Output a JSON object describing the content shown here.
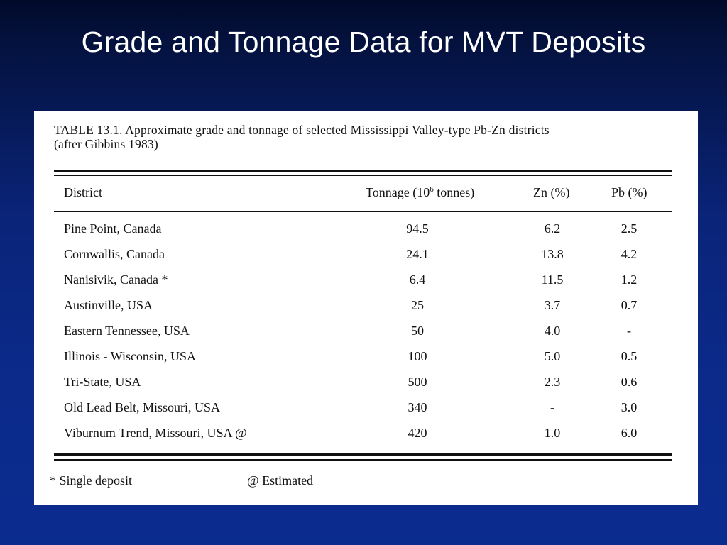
{
  "slide": {
    "title": "Grade and Tonnage Data for MVT Deposits"
  },
  "table": {
    "caption_line1": "TABLE 13.1.  Approximate grade and tonnage of selected Mississippi Valley-type Pb-Zn districts",
    "caption_line2": "(after Gibbins 1983)",
    "headers": {
      "district": "District",
      "tonnage_prefix": "Tonnage (10",
      "tonnage_exp": "6",
      "tonnage_suffix": " tonnes)",
      "zn": "Zn (%)",
      "pb": "Pb (%)"
    },
    "rows": [
      {
        "district": "Pine Point, Canada",
        "tonnage": "94.5",
        "zn": "6.2",
        "pb": "2.5"
      },
      {
        "district": "Cornwallis, Canada",
        "tonnage": "24.1",
        "zn": "13.8",
        "pb": "4.2"
      },
      {
        "district": "Nanisivik, Canada *",
        "tonnage": "6.4",
        "zn": "11.5",
        "pb": "1.2"
      },
      {
        "district": "Austinville, USA",
        "tonnage": "25",
        "zn": "3.7",
        "pb": "0.7"
      },
      {
        "district": "Eastern Tennessee, USA",
        "tonnage": "50",
        "zn": "4.0",
        "pb": "-"
      },
      {
        "district": "Illinois - Wisconsin, USA",
        "tonnage": "100",
        "zn": "5.0",
        "pb": "0.5"
      },
      {
        "district": "Tri-State, USA",
        "tonnage": "500",
        "zn": "2.3",
        "pb": "0.6"
      },
      {
        "district": "Old Lead Belt, Missouri, USA",
        "tonnage": "340",
        "zn": "-",
        "pb": "3.0"
      },
      {
        "district": "Viburnum Trend, Missouri, USA @",
        "tonnage": "420",
        "zn": "1.0",
        "pb": "6.0"
      }
    ],
    "footnotes": {
      "single": "* Single deposit",
      "estimated": "@ Estimated"
    }
  }
}
